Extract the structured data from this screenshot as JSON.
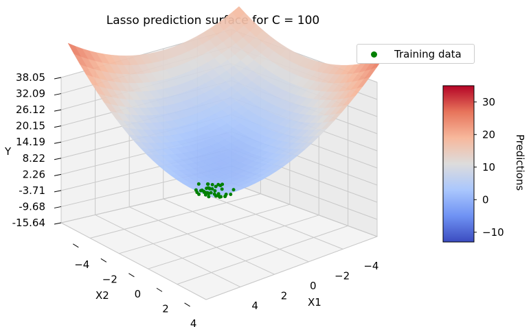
{
  "chart_data": {
    "type": "surface3d",
    "title": "Lasso prediction surface for C = 100",
    "xlabel": "X1",
    "ylabel": "X2",
    "zlabel": "Y",
    "x_ticks": [
      "−4",
      "−2",
      "0",
      "2",
      "4"
    ],
    "y_ticks": [
      "−4",
      "−2",
      "0",
      "2",
      "4"
    ],
    "z_ticks": [
      "38.05",
      "32.09",
      "26.12",
      "20.15",
      "14.19",
      "8.22",
      "2.26",
      "-3.71",
      "-9.68",
      "-15.64"
    ],
    "xlim": [
      -5,
      5
    ],
    "ylim": [
      -5,
      5
    ],
    "zlim": [
      -15.64,
      38.05
    ],
    "legend": {
      "label": "Training data",
      "marker_color": "#008000",
      "placement": "top-right"
    },
    "colorbar": {
      "label": "Predictions",
      "ticks": [
        "30",
        "20",
        "10",
        "0",
        "−10"
      ],
      "tick_values": [
        30,
        20,
        10,
        0,
        -10
      ],
      "range": [
        -13,
        35
      ],
      "colormap": "coolwarm",
      "colormap_stops": [
        "#3b4cc0",
        "#6f92f3",
        "#aac7fd",
        "#dddcdc",
        "#f7b89c",
        "#e7745b",
        "#b40426"
      ]
    },
    "surface": {
      "description_function": "quadratic saddle-like surface",
      "corner_values": {
        "x1_max_x2_min": 35,
        "x1_min_x2_max": 35,
        "x1_max_x2_max": -9,
        "x1_min_x2_min": 20,
        "center": 5
      }
    },
    "training_data_color": "#008000",
    "grid": true
  }
}
